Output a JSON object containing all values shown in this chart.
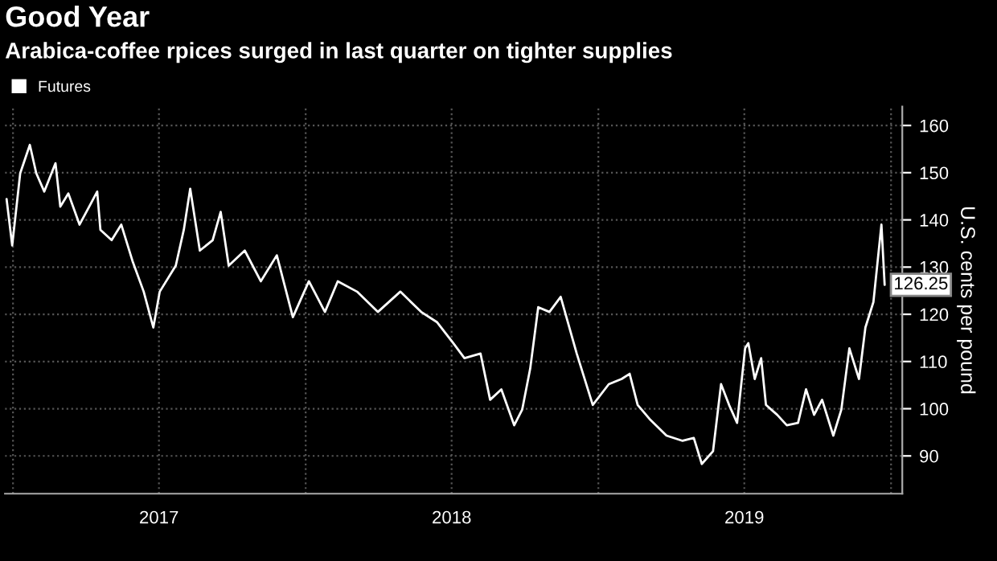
{
  "chart_data": {
    "type": "line",
    "title": "Good Year",
    "subtitle": "Arabica-coffee rpices surged in last quarter on tighter supplies",
    "ylabel": "U.S. cents per pound",
    "x": [
      "2016-12-24",
      "2016-12-31",
      "2017-01-10",
      "2017-01-22",
      "2017-01-30",
      "2017-02-09",
      "2017-02-23",
      "2017-03-01",
      "2017-03-11",
      "2017-03-25",
      "2017-04-06",
      "2017-04-16",
      "2017-04-20",
      "2017-05-04",
      "2017-05-16",
      "2017-05-30",
      "2017-06-13",
      "2017-06-25",
      "2017-07-03",
      "2017-07-23",
      "2017-08-02",
      "2017-08-10",
      "2017-08-22",
      "2017-09-07",
      "2017-09-17",
      "2017-09-27",
      "2017-10-17",
      "2017-11-06",
      "2017-11-26",
      "2017-12-16",
      "2018-01-05",
      "2018-01-25",
      "2018-02-10",
      "2018-03-06",
      "2018-04-01",
      "2018-04-29",
      "2018-05-25",
      "2018-06-14",
      "2018-07-04",
      "2018-07-18",
      "2018-08-07",
      "2018-08-19",
      "2018-09-02",
      "2018-09-18",
      "2018-09-28",
      "2018-10-08",
      "2018-10-18",
      "2018-11-01",
      "2018-11-15",
      "2018-12-05",
      "2018-12-25",
      "2019-01-14",
      "2019-01-30",
      "2019-02-09",
      "2019-02-19",
      "2019-03-07",
      "2019-03-27",
      "2019-04-16",
      "2019-04-30",
      "2019-05-10",
      "2019-05-24",
      "2019-06-03",
      "2019-06-13",
      "2019-06-23",
      "2019-07-03",
      "2019-07-07",
      "2019-07-15",
      "2019-07-23",
      "2019-07-29",
      "2019-08-12",
      "2019-08-24",
      "2019-09-07",
      "2019-09-17",
      "2019-09-27",
      "2019-10-07",
      "2019-10-21",
      "2019-10-31",
      "2019-11-10",
      "2019-11-22",
      "2019-11-30",
      "2019-12-10",
      "2019-12-20",
      "2019-12-24"
    ],
    "series": [
      {
        "name": "Futures",
        "color": "#ffffff",
        "values": [
          144.4,
          134.6,
          149.9,
          155.9,
          149.9,
          146,
          152,
          142.8,
          145.6,
          139,
          142.8,
          146,
          137.9,
          135.7,
          139,
          131.3,
          124.8,
          117.2,
          124.8,
          130.3,
          137.9,
          146.6,
          133.5,
          135.7,
          141.7,
          130.3,
          133.5,
          127,
          132.5,
          119.4,
          127,
          120.5,
          127,
          124.8,
          120.5,
          124.8,
          120.5,
          118.3,
          113.9,
          110.7,
          111.7,
          101.9,
          104.1,
          96.5,
          99.8,
          108.5,
          121.5,
          120.5,
          123.7,
          111.7,
          100.8,
          105.2,
          106.3,
          107.4,
          100.8,
          97.6,
          94.3,
          93.2,
          93.8,
          88.3,
          91,
          105.2,
          100.8,
          97,
          112.8,
          113.9,
          106.3,
          110.7,
          100.8,
          98.7,
          96.5,
          97,
          104.1,
          98.7,
          101.9,
          94.3,
          99.8,
          112.8,
          106.3,
          117.2,
          122.6,
          139,
          126.25
        ]
      }
    ],
    "annotations": [
      {
        "text": "126.25",
        "x": "2019-12-24",
        "y": 126.25
      }
    ],
    "xlim": [
      "2016-12-22",
      "2020-01-15"
    ],
    "xticks": [
      {
        "value": "2017-01-01",
        "label": null
      },
      {
        "value": "2017-07-02",
        "label": "2017"
      },
      {
        "value": "2018-01-01",
        "label": null
      },
      {
        "value": "2018-07-02",
        "label": "2018"
      },
      {
        "value": "2019-01-01",
        "label": null
      },
      {
        "value": "2019-07-02",
        "label": "2019"
      },
      {
        "value": "2020-01-01",
        "label": null
      }
    ],
    "ylim": [
      82,
      164
    ],
    "yticks": [
      90,
      100,
      110,
      120,
      130,
      140,
      150,
      160
    ],
    "grid": true,
    "legend": "top left",
    "line_style": "solid"
  }
}
